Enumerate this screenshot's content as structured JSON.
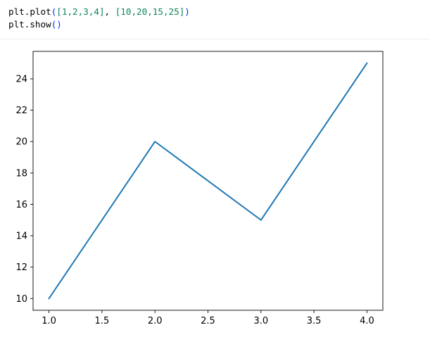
{
  "code_cell": {
    "line1": {
      "obj": "plt",
      "dot": ".",
      "func": "plot",
      "open_paren": "(",
      "arg1": "[1,2,3,4]",
      "sep": ", ",
      "arg2": "[10,20,15,25]",
      "close_paren": ")"
    },
    "line2": {
      "obj": "plt",
      "dot": ".",
      "func": "show",
      "parens": "()"
    }
  },
  "colors": {
    "line": "#1f77b4",
    "axes": "#000000",
    "paren": "#0431fa",
    "number": "#098658"
  },
  "chart_data": {
    "type": "line",
    "x": [
      1,
      2,
      3,
      4
    ],
    "series": [
      {
        "values": [
          10,
          20,
          15,
          25
        ]
      }
    ],
    "title": "",
    "xlabel": "",
    "ylabel": "",
    "xlim": [
      0.85,
      4.15
    ],
    "ylim": [
      9.25,
      25.75
    ],
    "xticks": [
      "1.0",
      "1.5",
      "2.0",
      "2.5",
      "3.0",
      "3.5",
      "4.0"
    ],
    "xtick_values": [
      1.0,
      1.5,
      2.0,
      2.5,
      3.0,
      3.5,
      4.0
    ],
    "yticks": [
      "10",
      "12",
      "14",
      "16",
      "18",
      "20",
      "22",
      "24"
    ],
    "ytick_values": [
      10,
      12,
      14,
      16,
      18,
      20,
      22,
      24
    ],
    "grid": false,
    "legend": false
  }
}
